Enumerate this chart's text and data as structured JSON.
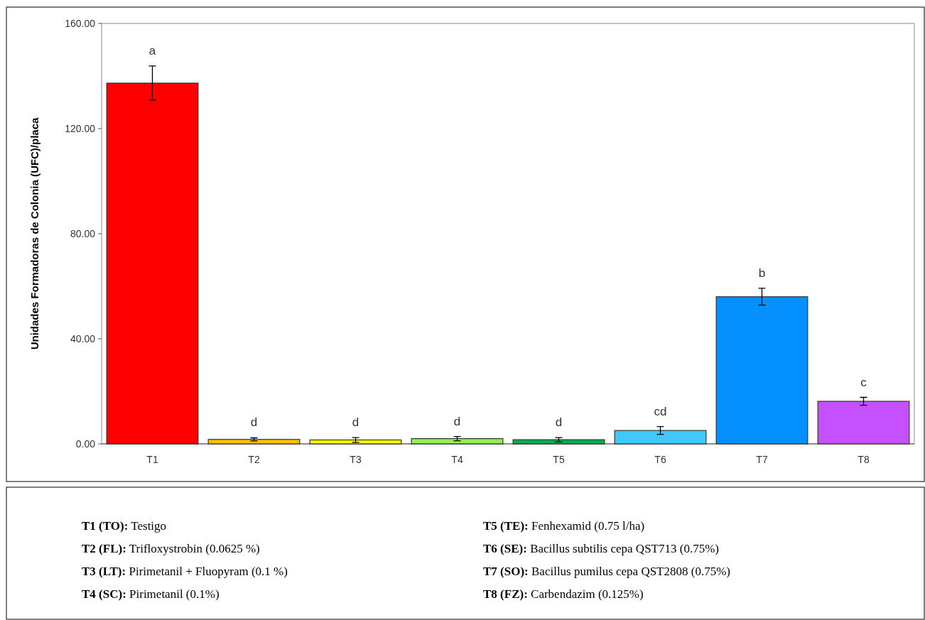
{
  "chart_data": {
    "type": "bar",
    "ylabel": "Unidades Formadoras de Colonia (UFC)/placa",
    "categories": [
      "T1",
      "T2",
      "T3",
      "T4",
      "T5",
      "T6",
      "T7",
      "T8"
    ],
    "values": [
      137.3,
      1.7,
      1.5,
      2.0,
      1.6,
      5.1,
      56.0,
      16.2
    ],
    "errors": [
      6.5,
      0.6,
      0.9,
      0.8,
      0.8,
      1.5,
      3.2,
      1.5
    ],
    "value_labels": [
      "a",
      "d",
      "d",
      "d",
      "d",
      "cd",
      "b",
      "c"
    ],
    "colors": [
      "#ff0000",
      "#ffc000",
      "#ffff00",
      "#92f050",
      "#00b050",
      "#40c8f8",
      "#0590ff",
      "#c550ff"
    ],
    "ylim": [
      0,
      160
    ],
    "yticks": [
      {
        "value": 0,
        "label": "0.00"
      },
      {
        "value": 40,
        "label": "40.00"
      },
      {
        "value": 80,
        "label": "80.00"
      },
      {
        "value": 120,
        "label": "120.00"
      },
      {
        "value": 160,
        "label": "160.00"
      }
    ],
    "grid": false,
    "annotations": [
      "T1 (TO): Testigo",
      "T2 (FL): Trifloxystrobin (0.0625 %)",
      "T3 (LT): Pirimetanil + Fluopyram (0.1 %)",
      "T4 (SC): Pirimetanil (0.1%)",
      "T5 (TE): Fenhexamid (0.75 l/ha)",
      "T6 (SE): Bacillus subtilis cepa QST713 (0.75%)",
      "T7 (SO): Bacillus pumilus cepa QST2808 (0.75%)",
      "T8 (FZ): Carbendazim (0.125%)"
    ]
  }
}
